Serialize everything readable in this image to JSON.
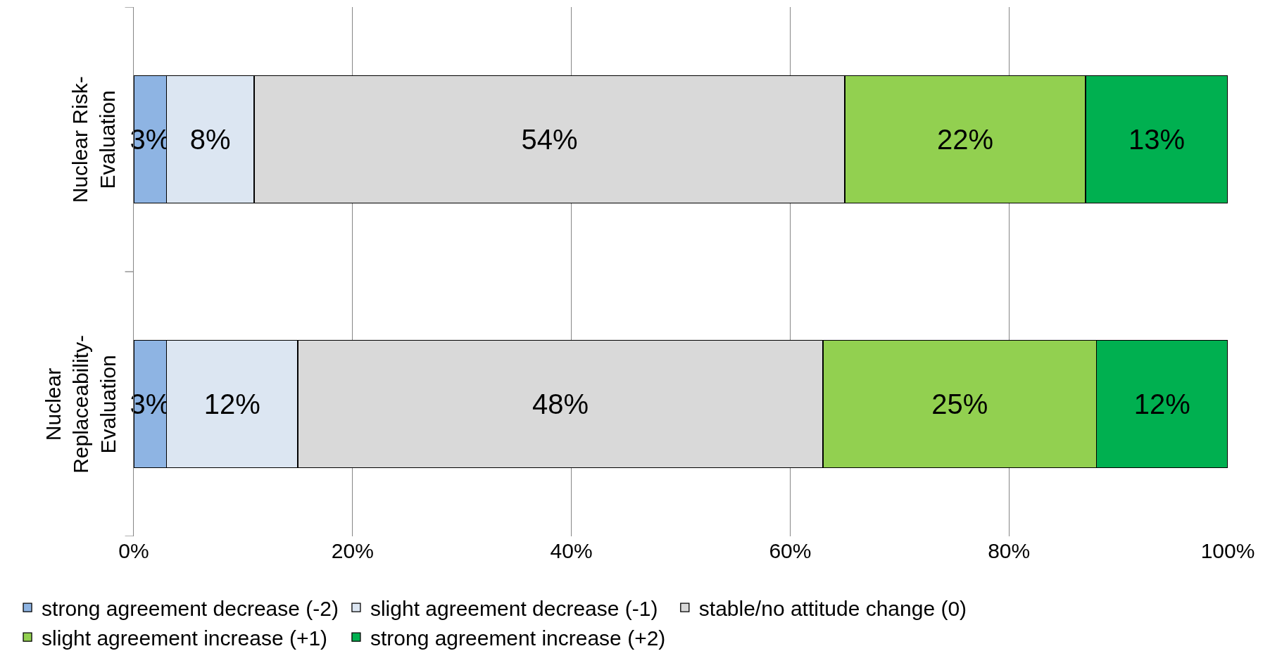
{
  "chart_data": {
    "type": "bar",
    "orientation": "horizontal",
    "stacked": true,
    "categories": [
      "Nuclear Risk-Evaluation",
      "Nuclear Replaceability-Evaluation"
    ],
    "series": [
      {
        "name": "strong agreement decrease (-2)",
        "color": "#8eb4e3",
        "values": [
          3,
          3
        ],
        "value_labels": [
          "3%",
          "3%"
        ]
      },
      {
        "name": "slight agreement decrease (-1)",
        "color": "#dce6f2",
        "values": [
          8,
          12
        ],
        "value_labels": [
          "8%",
          "12%"
        ]
      },
      {
        "name": "stable/no attitude change (0)",
        "color": "#d9d9d9",
        "values": [
          54,
          48
        ],
        "value_labels": [
          "54%",
          "48%"
        ]
      },
      {
        "name": "slight agreement increase (+1)",
        "color": "#92d050",
        "values": [
          22,
          25
        ],
        "value_labels": [
          "22%",
          "25%"
        ]
      },
      {
        "name": "strong agreement increase (+2)",
        "color": "#00b050",
        "values": [
          13,
          12
        ],
        "value_labels": [
          "13%",
          "12%"
        ]
      }
    ],
    "xlim": [
      0,
      100
    ],
    "xticks": [
      {
        "value": 0,
        "label": "0%"
      },
      {
        "value": 20,
        "label": "20%"
      },
      {
        "value": 40,
        "label": "40%"
      },
      {
        "value": 60,
        "label": "60%"
      },
      {
        "value": 80,
        "label": "80%"
      },
      {
        "value": 100,
        "label": "100%"
      }
    ],
    "grid": "x",
    "legend": "bottom"
  }
}
